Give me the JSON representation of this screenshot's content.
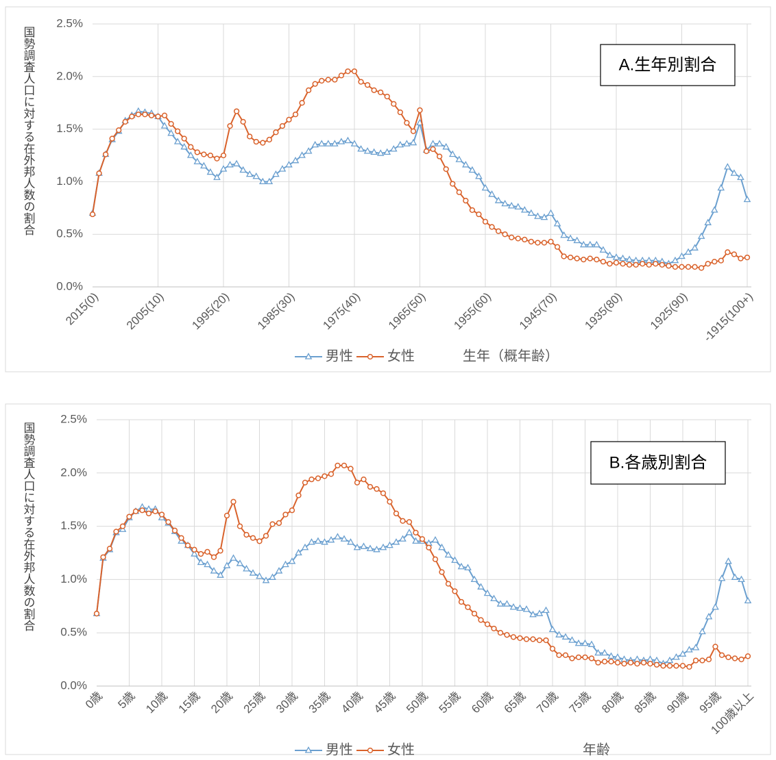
{
  "chart_data": [
    {
      "type": "line",
      "annotation": "A.生年別割合",
      "ylabel": "国勢調査人口に対する在外邦人数の割合",
      "xlabel": "生年（概年齢）",
      "categories": [
        "2015(0)",
        null,
        null,
        null,
        null,
        null,
        null,
        null,
        null,
        null,
        "2005(10)",
        null,
        null,
        null,
        null,
        null,
        null,
        null,
        null,
        null,
        "1995(20)",
        null,
        null,
        null,
        null,
        null,
        null,
        null,
        null,
        null,
        "1985(30)",
        null,
        null,
        null,
        null,
        null,
        null,
        null,
        null,
        null,
        "1975(40)",
        null,
        null,
        null,
        null,
        null,
        null,
        null,
        null,
        null,
        "1965(50)",
        null,
        null,
        null,
        null,
        null,
        null,
        null,
        null,
        null,
        "1955(60)",
        null,
        null,
        null,
        null,
        null,
        null,
        null,
        null,
        null,
        "1945(70)",
        null,
        null,
        null,
        null,
        null,
        null,
        null,
        null,
        null,
        "1935(80)",
        null,
        null,
        null,
        null,
        null,
        null,
        null,
        null,
        null,
        "1925(90)",
        null,
        null,
        null,
        null,
        null,
        null,
        null,
        null,
        null,
        "-1915(100+)"
      ],
      "series": [
        {
          "name": "男性",
          "color": "#6a9fcf",
          "marker": "triangle",
          "values": [
            0.7,
            1.08,
            1.26,
            1.4,
            1.48,
            1.58,
            1.63,
            1.67,
            1.66,
            1.65,
            1.62,
            1.53,
            1.46,
            1.38,
            1.33,
            1.25,
            1.19,
            1.15,
            1.09,
            1.04,
            1.12,
            1.16,
            1.17,
            1.11,
            1.07,
            1.05,
            1.0,
            1.0,
            1.07,
            1.12,
            1.16,
            1.2,
            1.25,
            1.29,
            1.35,
            1.36,
            1.36,
            1.36,
            1.38,
            1.39,
            1.36,
            1.31,
            1.29,
            1.28,
            1.27,
            1.28,
            1.31,
            1.35,
            1.36,
            1.37,
            1.56,
            1.3,
            1.36,
            1.36,
            1.33,
            1.26,
            1.21,
            1.16,
            1.11,
            1.05,
            0.94,
            0.88,
            0.82,
            0.79,
            0.77,
            0.76,
            0.73,
            0.7,
            0.67,
            0.66,
            0.7,
            0.6,
            0.49,
            0.46,
            0.44,
            0.4,
            0.4,
            0.4,
            0.35,
            0.3,
            0.28,
            0.27,
            0.26,
            0.25,
            0.25,
            0.25,
            0.25,
            0.24,
            0.22,
            0.25,
            0.29,
            0.33,
            0.37,
            0.48,
            0.61,
            0.73,
            0.94,
            1.14,
            1.08,
            1.04,
            0.83
          ]
        },
        {
          "name": "女性",
          "color": "#d9622b",
          "marker": "circle",
          "values": [
            0.69,
            1.08,
            1.26,
            1.41,
            1.49,
            1.57,
            1.62,
            1.64,
            1.64,
            1.63,
            1.62,
            1.63,
            1.55,
            1.48,
            1.41,
            1.33,
            1.28,
            1.26,
            1.25,
            1.22,
            1.25,
            1.53,
            1.67,
            1.57,
            1.43,
            1.38,
            1.37,
            1.4,
            1.47,
            1.53,
            1.59,
            1.64,
            1.75,
            1.87,
            1.93,
            1.96,
            1.97,
            1.97,
            2.01,
            2.05,
            2.05,
            1.95,
            1.92,
            1.87,
            1.85,
            1.81,
            1.74,
            1.66,
            1.56,
            1.48,
            1.68,
            1.29,
            1.31,
            1.24,
            1.12,
            0.98,
            0.9,
            0.82,
            0.73,
            0.69,
            0.62,
            0.57,
            0.53,
            0.5,
            0.47,
            0.46,
            0.45,
            0.43,
            0.42,
            0.42,
            0.43,
            0.38,
            0.29,
            0.28,
            0.27,
            0.26,
            0.27,
            0.26,
            0.24,
            0.22,
            0.23,
            0.22,
            0.21,
            0.21,
            0.22,
            0.21,
            0.22,
            0.21,
            0.2,
            0.19,
            0.19,
            0.19,
            0.19,
            0.18,
            0.22,
            0.24,
            0.25,
            0.33,
            0.31,
            0.27,
            0.28
          ]
        }
      ],
      "ylim": [
        0,
        2.5
      ],
      "yticks": [
        {
          "value": 0,
          "label": "0.0%"
        },
        {
          "value": 0.5,
          "label": "0.5%"
        },
        {
          "value": 1,
          "label": "1.0%"
        },
        {
          "value": 1.5,
          "label": "1.5%"
        },
        {
          "value": 2,
          "label": "2.0%"
        },
        {
          "value": 2.5,
          "label": "2.5%"
        }
      ],
      "grid": true,
      "legend": "bottom"
    },
    {
      "type": "line",
      "annotation": "B.各歳別割合",
      "ylabel": "国勢調査人口に対する在外邦人数の割合",
      "xlabel": "年齢",
      "categories": [
        "0歳",
        null,
        null,
        null,
        null,
        "5歳",
        null,
        null,
        null,
        null,
        "10歳",
        null,
        null,
        null,
        null,
        "15歳",
        null,
        null,
        null,
        null,
        "20歳",
        null,
        null,
        null,
        null,
        "25歳",
        null,
        null,
        null,
        null,
        "30歳",
        null,
        null,
        null,
        null,
        "35歳",
        null,
        null,
        null,
        null,
        "40歳",
        null,
        null,
        null,
        null,
        "45歳",
        null,
        null,
        null,
        null,
        "50歳",
        null,
        null,
        null,
        null,
        "55歳",
        null,
        null,
        null,
        null,
        "60歳",
        null,
        null,
        null,
        null,
        "65歳",
        null,
        null,
        null,
        null,
        "70歳",
        null,
        null,
        null,
        null,
        "75歳",
        null,
        null,
        null,
        null,
        "80歳",
        null,
        null,
        null,
        null,
        "85歳",
        null,
        null,
        null,
        null,
        "90歳",
        null,
        null,
        null,
        null,
        "95歳",
        null,
        null,
        null,
        null,
        "100歳以上"
      ],
      "series": [
        {
          "name": "男性",
          "color": "#6a9fcf",
          "marker": "triangle",
          "values": [
            0.68,
            1.2,
            1.28,
            1.44,
            1.47,
            1.58,
            1.64,
            1.68,
            1.66,
            1.66,
            1.58,
            1.53,
            1.45,
            1.36,
            1.32,
            1.24,
            1.16,
            1.14,
            1.08,
            1.04,
            1.13,
            1.2,
            1.15,
            1.1,
            1.06,
            1.03,
            0.99,
            1.02,
            1.08,
            1.14,
            1.17,
            1.25,
            1.3,
            1.35,
            1.36,
            1.35,
            1.37,
            1.4,
            1.38,
            1.35,
            1.3,
            1.31,
            1.29,
            1.28,
            1.3,
            1.32,
            1.35,
            1.38,
            1.44,
            1.36,
            1.36,
            1.34,
            1.37,
            1.3,
            1.23,
            1.18,
            1.12,
            1.11,
            1.0,
            0.93,
            0.87,
            0.82,
            0.77,
            0.77,
            0.74,
            0.73,
            0.72,
            0.67,
            0.68,
            0.71,
            0.53,
            0.48,
            0.46,
            0.43,
            0.4,
            0.4,
            0.39,
            0.31,
            0.31,
            0.28,
            0.27,
            0.25,
            0.24,
            0.25,
            0.24,
            0.25,
            0.24,
            0.21,
            0.24,
            0.27,
            0.3,
            0.34,
            0.36,
            0.51,
            0.65,
            0.74,
            1.01,
            1.17,
            1.02,
            1.0,
            0.8
          ]
        },
        {
          "name": "女性",
          "color": "#d9622b",
          "marker": "circle",
          "values": [
            0.68,
            1.21,
            1.29,
            1.45,
            1.5,
            1.59,
            1.64,
            1.65,
            1.62,
            1.64,
            1.61,
            1.54,
            1.46,
            1.39,
            1.32,
            1.28,
            1.24,
            1.26,
            1.21,
            1.27,
            1.6,
            1.73,
            1.5,
            1.42,
            1.39,
            1.36,
            1.41,
            1.52,
            1.53,
            1.61,
            1.65,
            1.79,
            1.91,
            1.94,
            1.95,
            1.97,
            1.99,
            2.07,
            2.07,
            2.04,
            1.91,
            1.94,
            1.87,
            1.85,
            1.81,
            1.73,
            1.62,
            1.55,
            1.54,
            1.44,
            1.38,
            1.3,
            1.19,
            1.07,
            0.96,
            0.89,
            0.79,
            0.74,
            0.68,
            0.62,
            0.58,
            0.54,
            0.5,
            0.48,
            0.46,
            0.45,
            0.44,
            0.44,
            0.43,
            0.43,
            0.35,
            0.29,
            0.29,
            0.26,
            0.27,
            0.27,
            0.26,
            0.22,
            0.23,
            0.23,
            0.22,
            0.21,
            0.22,
            0.21,
            0.22,
            0.21,
            0.2,
            0.19,
            0.19,
            0.19,
            0.19,
            0.18,
            0.24,
            0.24,
            0.25,
            0.37,
            0.29,
            0.27,
            0.26,
            0.25,
            0.28
          ]
        }
      ],
      "ylim": [
        0,
        2.5
      ],
      "yticks": [
        {
          "value": 0,
          "label": "0.0%"
        },
        {
          "value": 0.5,
          "label": "0.5%"
        },
        {
          "value": 1,
          "label": "1.0%"
        },
        {
          "value": 1.5,
          "label": "1.5%"
        },
        {
          "value": 2,
          "label": "2.0%"
        },
        {
          "value": 2.5,
          "label": "2.5%"
        }
      ],
      "grid": true,
      "legend": "bottom"
    }
  ]
}
